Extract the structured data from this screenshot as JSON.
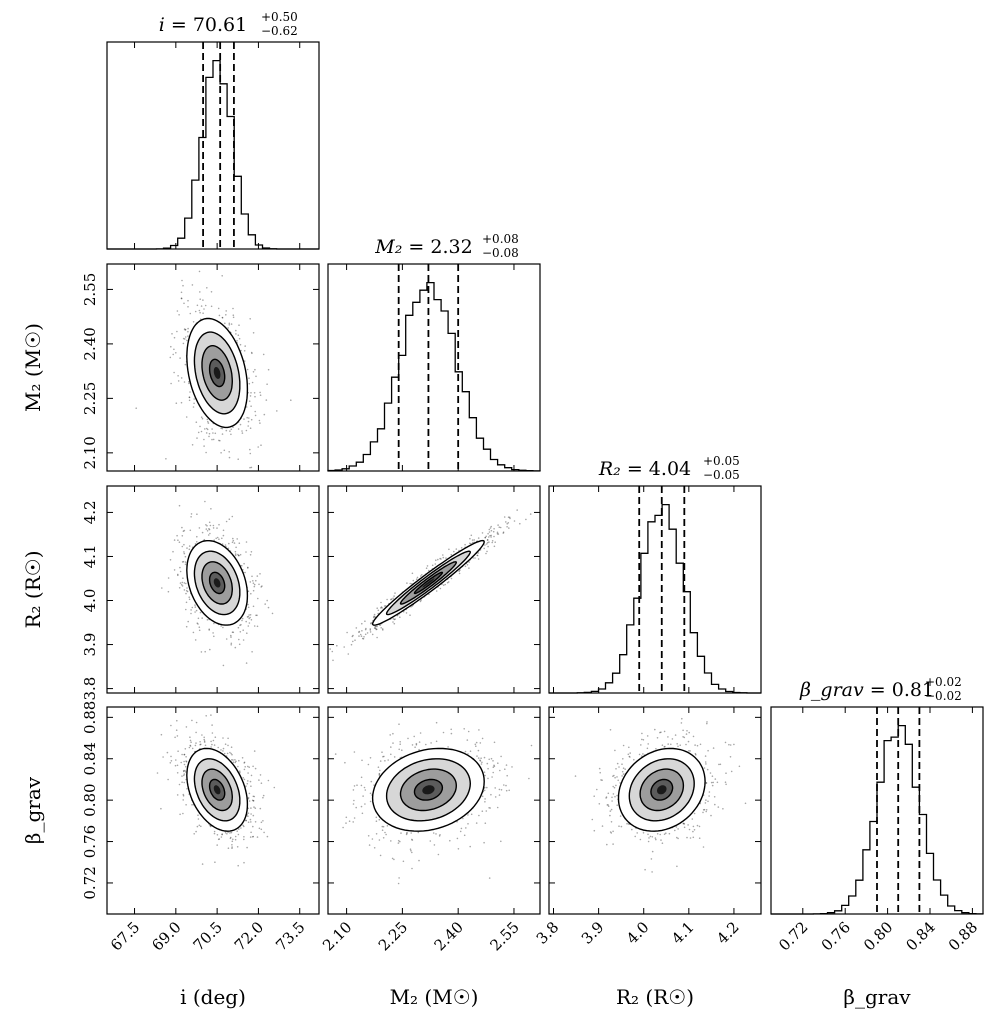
{
  "chart_data": {
    "type": "corner",
    "parameters": [
      {
        "symbol": "i",
        "unit": "deg",
        "axis_label": "i (deg)",
        "title": {
          "name": "i",
          "value": "70.61",
          "plus": "+0.50",
          "minus": "−0.62"
        },
        "range": [
          66.5,
          74.2
        ],
        "ticks": [
          67.5,
          69.0,
          70.5,
          72.0,
          73.5
        ],
        "tick_labels": [
          "67.5",
          "69.0",
          "70.5",
          "72.0",
          "73.5"
        ],
        "mean": 70.5,
        "sigma": 0.55,
        "quantiles": [
          69.99,
          70.61,
          71.11
        ]
      },
      {
        "symbol": "M2",
        "unit": "M☉",
        "axis_label": "M₂ (M☉)",
        "title": {
          "name": "M₂",
          "value": "2.32",
          "plus": "+0.08",
          "minus": "−0.08"
        },
        "range": [
          2.05,
          2.62
        ],
        "ticks": [
          2.1,
          2.25,
          2.4,
          2.55
        ],
        "tick_labels": [
          "2.10",
          "2.25",
          "2.40",
          "2.55"
        ],
        "mean": 2.32,
        "sigma": 0.075,
        "quantiles": [
          2.24,
          2.32,
          2.4
        ]
      },
      {
        "symbol": "R2",
        "unit": "R☉",
        "axis_label": "R₂ (R☉)",
        "title": {
          "name": "R₂",
          "value": "4.04",
          "plus": "+0.05",
          "minus": "−0.05"
        },
        "range": [
          3.79,
          4.26
        ],
        "ticks": [
          3.8,
          3.9,
          4.0,
          4.1,
          4.2
        ],
        "tick_labels": [
          "3.8",
          "3.9",
          "4.0",
          "4.1",
          "4.2"
        ],
        "mean": 4.04,
        "sigma": 0.048,
        "quantiles": [
          3.99,
          4.04,
          4.09
        ]
      },
      {
        "symbol": "beta_grav",
        "unit": "",
        "axis_label": "β_grav",
        "title": {
          "name": "β_grav",
          "value": "0.81",
          "plus": "+0.02",
          "minus": "−0.02"
        },
        "range": [
          0.69,
          0.89
        ],
        "ticks": [
          0.72,
          0.76,
          0.8,
          0.84,
          0.88
        ],
        "tick_labels": [
          "0.72",
          "0.76",
          "0.80",
          "0.84",
          "0.88"
        ],
        "mean": 0.81,
        "sigma": 0.02,
        "quantiles": [
          0.79,
          0.81,
          0.83
        ]
      }
    ],
    "correlations": {
      "M2_i": -0.3,
      "R2_i": -0.3,
      "beta_grav_i": -0.35,
      "R2_M2": 0.97,
      "beta_grav_M2": 0.2,
      "beta_grav_R2": 0.2
    },
    "contour_levels_sigma": [
      0.5,
      1.0,
      1.5,
      2.0
    ],
    "quantile_line_style": "dashed",
    "colors": {
      "ink": "#000000",
      "background": "#ffffff"
    }
  }
}
